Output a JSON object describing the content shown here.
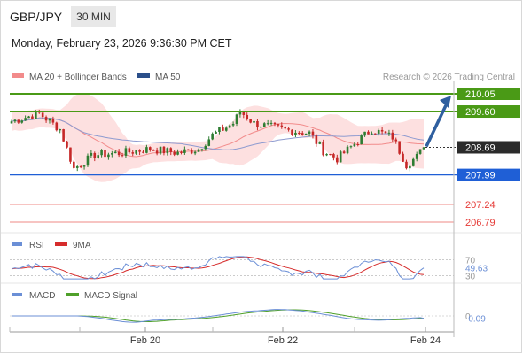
{
  "header": {
    "symbol": "GBP/JPY",
    "timeframe": "30 MIN",
    "timestamp": "Monday, February 23, 2026 9:36:30 PM CET"
  },
  "legend": {
    "bb_label": "MA 20 + Bollinger Bands",
    "ma50_label": "MA 50",
    "credit": "Research © 2026 Trading Central"
  },
  "colors": {
    "up_candle": "#2e7d32",
    "down_candle": "#c62828",
    "bollinger_fill": "#fde0e0",
    "ma20": "#f28b8b",
    "ma50": "#8e9bd0",
    "resistance": "#4a9a16",
    "support": "#1f5fd6",
    "target": "#e53935",
    "last_price_bg": "#2b2b2b",
    "arrow": "#2f5f9f",
    "rsi": "#6b8fd6",
    "rsi_9ma": "#d62c2c",
    "macd": "#6b8fd6",
    "macd_signal": "#4fa02a"
  },
  "chart_data": [
    {
      "type": "candlestick",
      "title": "GBP/JPY 30 MIN",
      "ylim": [
        206.5,
        210.6
      ],
      "x_ticks": [
        "Feb 20",
        "Feb 22",
        "Feb 24"
      ],
      "series": [
        {
          "name": "MA 20 + Bollinger Bands",
          "role": "ma20"
        },
        {
          "name": "MA 50",
          "role": "ma50"
        }
      ],
      "levels": [
        {
          "value": 210.05,
          "label": "210.05",
          "kind": "resistance"
        },
        {
          "value": 209.6,
          "label": "209.60",
          "kind": "resistance"
        },
        {
          "value": 208.69,
          "label": "208.69",
          "kind": "last"
        },
        {
          "value": 207.99,
          "label": "207.99",
          "kind": "support"
        },
        {
          "value": 207.24,
          "label": "207.24",
          "kind": "target"
        },
        {
          "value": 206.79,
          "label": "206.79",
          "kind": "target"
        }
      ],
      "forecast_arrow": {
        "from": 208.69,
        "to": 210.05
      }
    },
    {
      "type": "line",
      "title": "RSI",
      "series": [
        {
          "name": "RSI"
        },
        {
          "name": "9MA"
        }
      ],
      "ylim": [
        20,
        80
      ],
      "reference_levels": [
        {
          "value": 70,
          "label": "70"
        },
        {
          "value": 30,
          "label": "30"
        }
      ],
      "last_value": 49.63,
      "last_label": "49.63"
    },
    {
      "type": "line",
      "title": "MACD",
      "series": [
        {
          "name": "MACD"
        },
        {
          "name": "MACD Signal"
        }
      ],
      "reference_levels": [
        {
          "value": 0,
          "label": "0"
        }
      ],
      "last_value": -0.09,
      "last_label": "-0.09"
    }
  ]
}
